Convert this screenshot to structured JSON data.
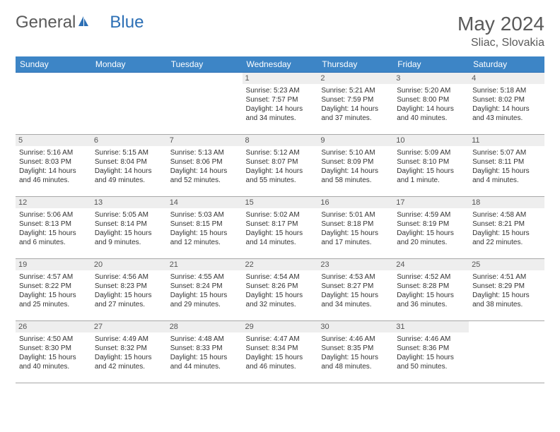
{
  "brand": {
    "text1": "General",
    "text2": "Blue"
  },
  "title": {
    "month": "May 2024",
    "location": "Sliac, Slovakia"
  },
  "colors": {
    "header_bg": "#3d85c6",
    "header_text": "#ffffff",
    "row_border_top": "#2c6fb5",
    "row_border_bottom": "#a8a8a8",
    "daynum_bg": "#eeeeee",
    "text": "#333333",
    "brand_gray": "#5a5a5a",
    "brand_blue": "#2c6fb5"
  },
  "day_headers": [
    "Sunday",
    "Monday",
    "Tuesday",
    "Wednesday",
    "Thursday",
    "Friday",
    "Saturday"
  ],
  "weeks": [
    [
      null,
      null,
      null,
      {
        "n": "1",
        "sr": "5:23 AM",
        "ss": "7:57 PM",
        "dl": "14 hours and 34 minutes."
      },
      {
        "n": "2",
        "sr": "5:21 AM",
        "ss": "7:59 PM",
        "dl": "14 hours and 37 minutes."
      },
      {
        "n": "3",
        "sr": "5:20 AM",
        "ss": "8:00 PM",
        "dl": "14 hours and 40 minutes."
      },
      {
        "n": "4",
        "sr": "5:18 AM",
        "ss": "8:02 PM",
        "dl": "14 hours and 43 minutes."
      }
    ],
    [
      {
        "n": "5",
        "sr": "5:16 AM",
        "ss": "8:03 PM",
        "dl": "14 hours and 46 minutes."
      },
      {
        "n": "6",
        "sr": "5:15 AM",
        "ss": "8:04 PM",
        "dl": "14 hours and 49 minutes."
      },
      {
        "n": "7",
        "sr": "5:13 AM",
        "ss": "8:06 PM",
        "dl": "14 hours and 52 minutes."
      },
      {
        "n": "8",
        "sr": "5:12 AM",
        "ss": "8:07 PM",
        "dl": "14 hours and 55 minutes."
      },
      {
        "n": "9",
        "sr": "5:10 AM",
        "ss": "8:09 PM",
        "dl": "14 hours and 58 minutes."
      },
      {
        "n": "10",
        "sr": "5:09 AM",
        "ss": "8:10 PM",
        "dl": "15 hours and 1 minute."
      },
      {
        "n": "11",
        "sr": "5:07 AM",
        "ss": "8:11 PM",
        "dl": "15 hours and 4 minutes."
      }
    ],
    [
      {
        "n": "12",
        "sr": "5:06 AM",
        "ss": "8:13 PM",
        "dl": "15 hours and 6 minutes."
      },
      {
        "n": "13",
        "sr": "5:05 AM",
        "ss": "8:14 PM",
        "dl": "15 hours and 9 minutes."
      },
      {
        "n": "14",
        "sr": "5:03 AM",
        "ss": "8:15 PM",
        "dl": "15 hours and 12 minutes."
      },
      {
        "n": "15",
        "sr": "5:02 AM",
        "ss": "8:17 PM",
        "dl": "15 hours and 14 minutes."
      },
      {
        "n": "16",
        "sr": "5:01 AM",
        "ss": "8:18 PM",
        "dl": "15 hours and 17 minutes."
      },
      {
        "n": "17",
        "sr": "4:59 AM",
        "ss": "8:19 PM",
        "dl": "15 hours and 20 minutes."
      },
      {
        "n": "18",
        "sr": "4:58 AM",
        "ss": "8:21 PM",
        "dl": "15 hours and 22 minutes."
      }
    ],
    [
      {
        "n": "19",
        "sr": "4:57 AM",
        "ss": "8:22 PM",
        "dl": "15 hours and 25 minutes."
      },
      {
        "n": "20",
        "sr": "4:56 AM",
        "ss": "8:23 PM",
        "dl": "15 hours and 27 minutes."
      },
      {
        "n": "21",
        "sr": "4:55 AM",
        "ss": "8:24 PM",
        "dl": "15 hours and 29 minutes."
      },
      {
        "n": "22",
        "sr": "4:54 AM",
        "ss": "8:26 PM",
        "dl": "15 hours and 32 minutes."
      },
      {
        "n": "23",
        "sr": "4:53 AM",
        "ss": "8:27 PM",
        "dl": "15 hours and 34 minutes."
      },
      {
        "n": "24",
        "sr": "4:52 AM",
        "ss": "8:28 PM",
        "dl": "15 hours and 36 minutes."
      },
      {
        "n": "25",
        "sr": "4:51 AM",
        "ss": "8:29 PM",
        "dl": "15 hours and 38 minutes."
      }
    ],
    [
      {
        "n": "26",
        "sr": "4:50 AM",
        "ss": "8:30 PM",
        "dl": "15 hours and 40 minutes."
      },
      {
        "n": "27",
        "sr": "4:49 AM",
        "ss": "8:32 PM",
        "dl": "15 hours and 42 minutes."
      },
      {
        "n": "28",
        "sr": "4:48 AM",
        "ss": "8:33 PM",
        "dl": "15 hours and 44 minutes."
      },
      {
        "n": "29",
        "sr": "4:47 AM",
        "ss": "8:34 PM",
        "dl": "15 hours and 46 minutes."
      },
      {
        "n": "30",
        "sr": "4:46 AM",
        "ss": "8:35 PM",
        "dl": "15 hours and 48 minutes."
      },
      {
        "n": "31",
        "sr": "4:46 AM",
        "ss": "8:36 PM",
        "dl": "15 hours and 50 minutes."
      },
      null
    ]
  ],
  "labels": {
    "sunrise": "Sunrise: ",
    "sunset": "Sunset: ",
    "daylight": "Daylight: "
  }
}
